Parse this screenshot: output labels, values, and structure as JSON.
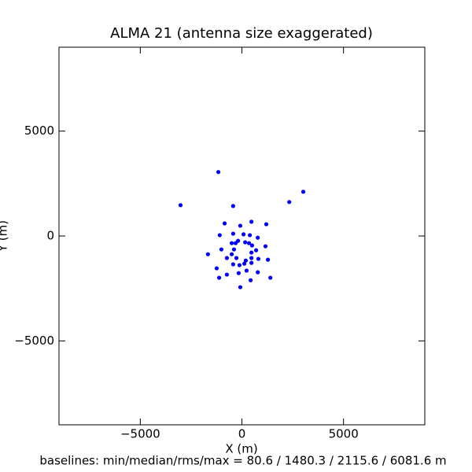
{
  "chart_data": {
    "type": "scatter",
    "title": "ALMA 21 (antenna size exaggerated)",
    "xlabel": "X (m)",
    "ylabel": "Y (m)",
    "footer": "baselines: min/median/rms/max = 80.6 / 1480.3 / 2115.6 / 6081.6 m",
    "color": "#0000ff",
    "x": [
      -1160,
      -3020,
      -430,
      3020,
      2330,
      -850,
      470,
      -80,
      1200,
      -1090,
      -430,
      80,
      390,
      780,
      -190,
      -500,
      -310,
      160,
      350,
      500,
      1160,
      -1010,
      -390,
      700,
      -1670,
      -500,
      470,
      -740,
      -270,
      190,
      470,
      810,
      1280,
      120,
      -430,
      -120,
      470,
      -1240,
      230,
      780,
      -740,
      -160,
      -1120,
      1400,
      430,
      -80
    ],
    "values": [
      3050,
      1470,
      1430,
      2110,
      1620,
      600,
      680,
      490,
      560,
      40,
      110,
      80,
      40,
      -80,
      -230,
      -340,
      -340,
      -300,
      -340,
      -450,
      -490,
      -640,
      -640,
      -680,
      -870,
      -870,
      -790,
      -1050,
      -1050,
      -1170,
      -1050,
      -1090,
      -1130,
      -1320,
      -1350,
      -1390,
      -1280,
      -1540,
      -1650,
      -1730,
      -1840,
      -1770,
      -1990,
      -1990,
      -2110,
      -2440
    ],
    "xlim": [
      -9000,
      9000
    ],
    "ylim": [
      -9000,
      9000
    ],
    "xticks": [
      {
        "value": -5000,
        "label": "−5000"
      },
      0,
      5000
    ],
    "yticks": [
      {
        "value": -5000,
        "label": "−5000"
      },
      0,
      5000
    ]
  }
}
